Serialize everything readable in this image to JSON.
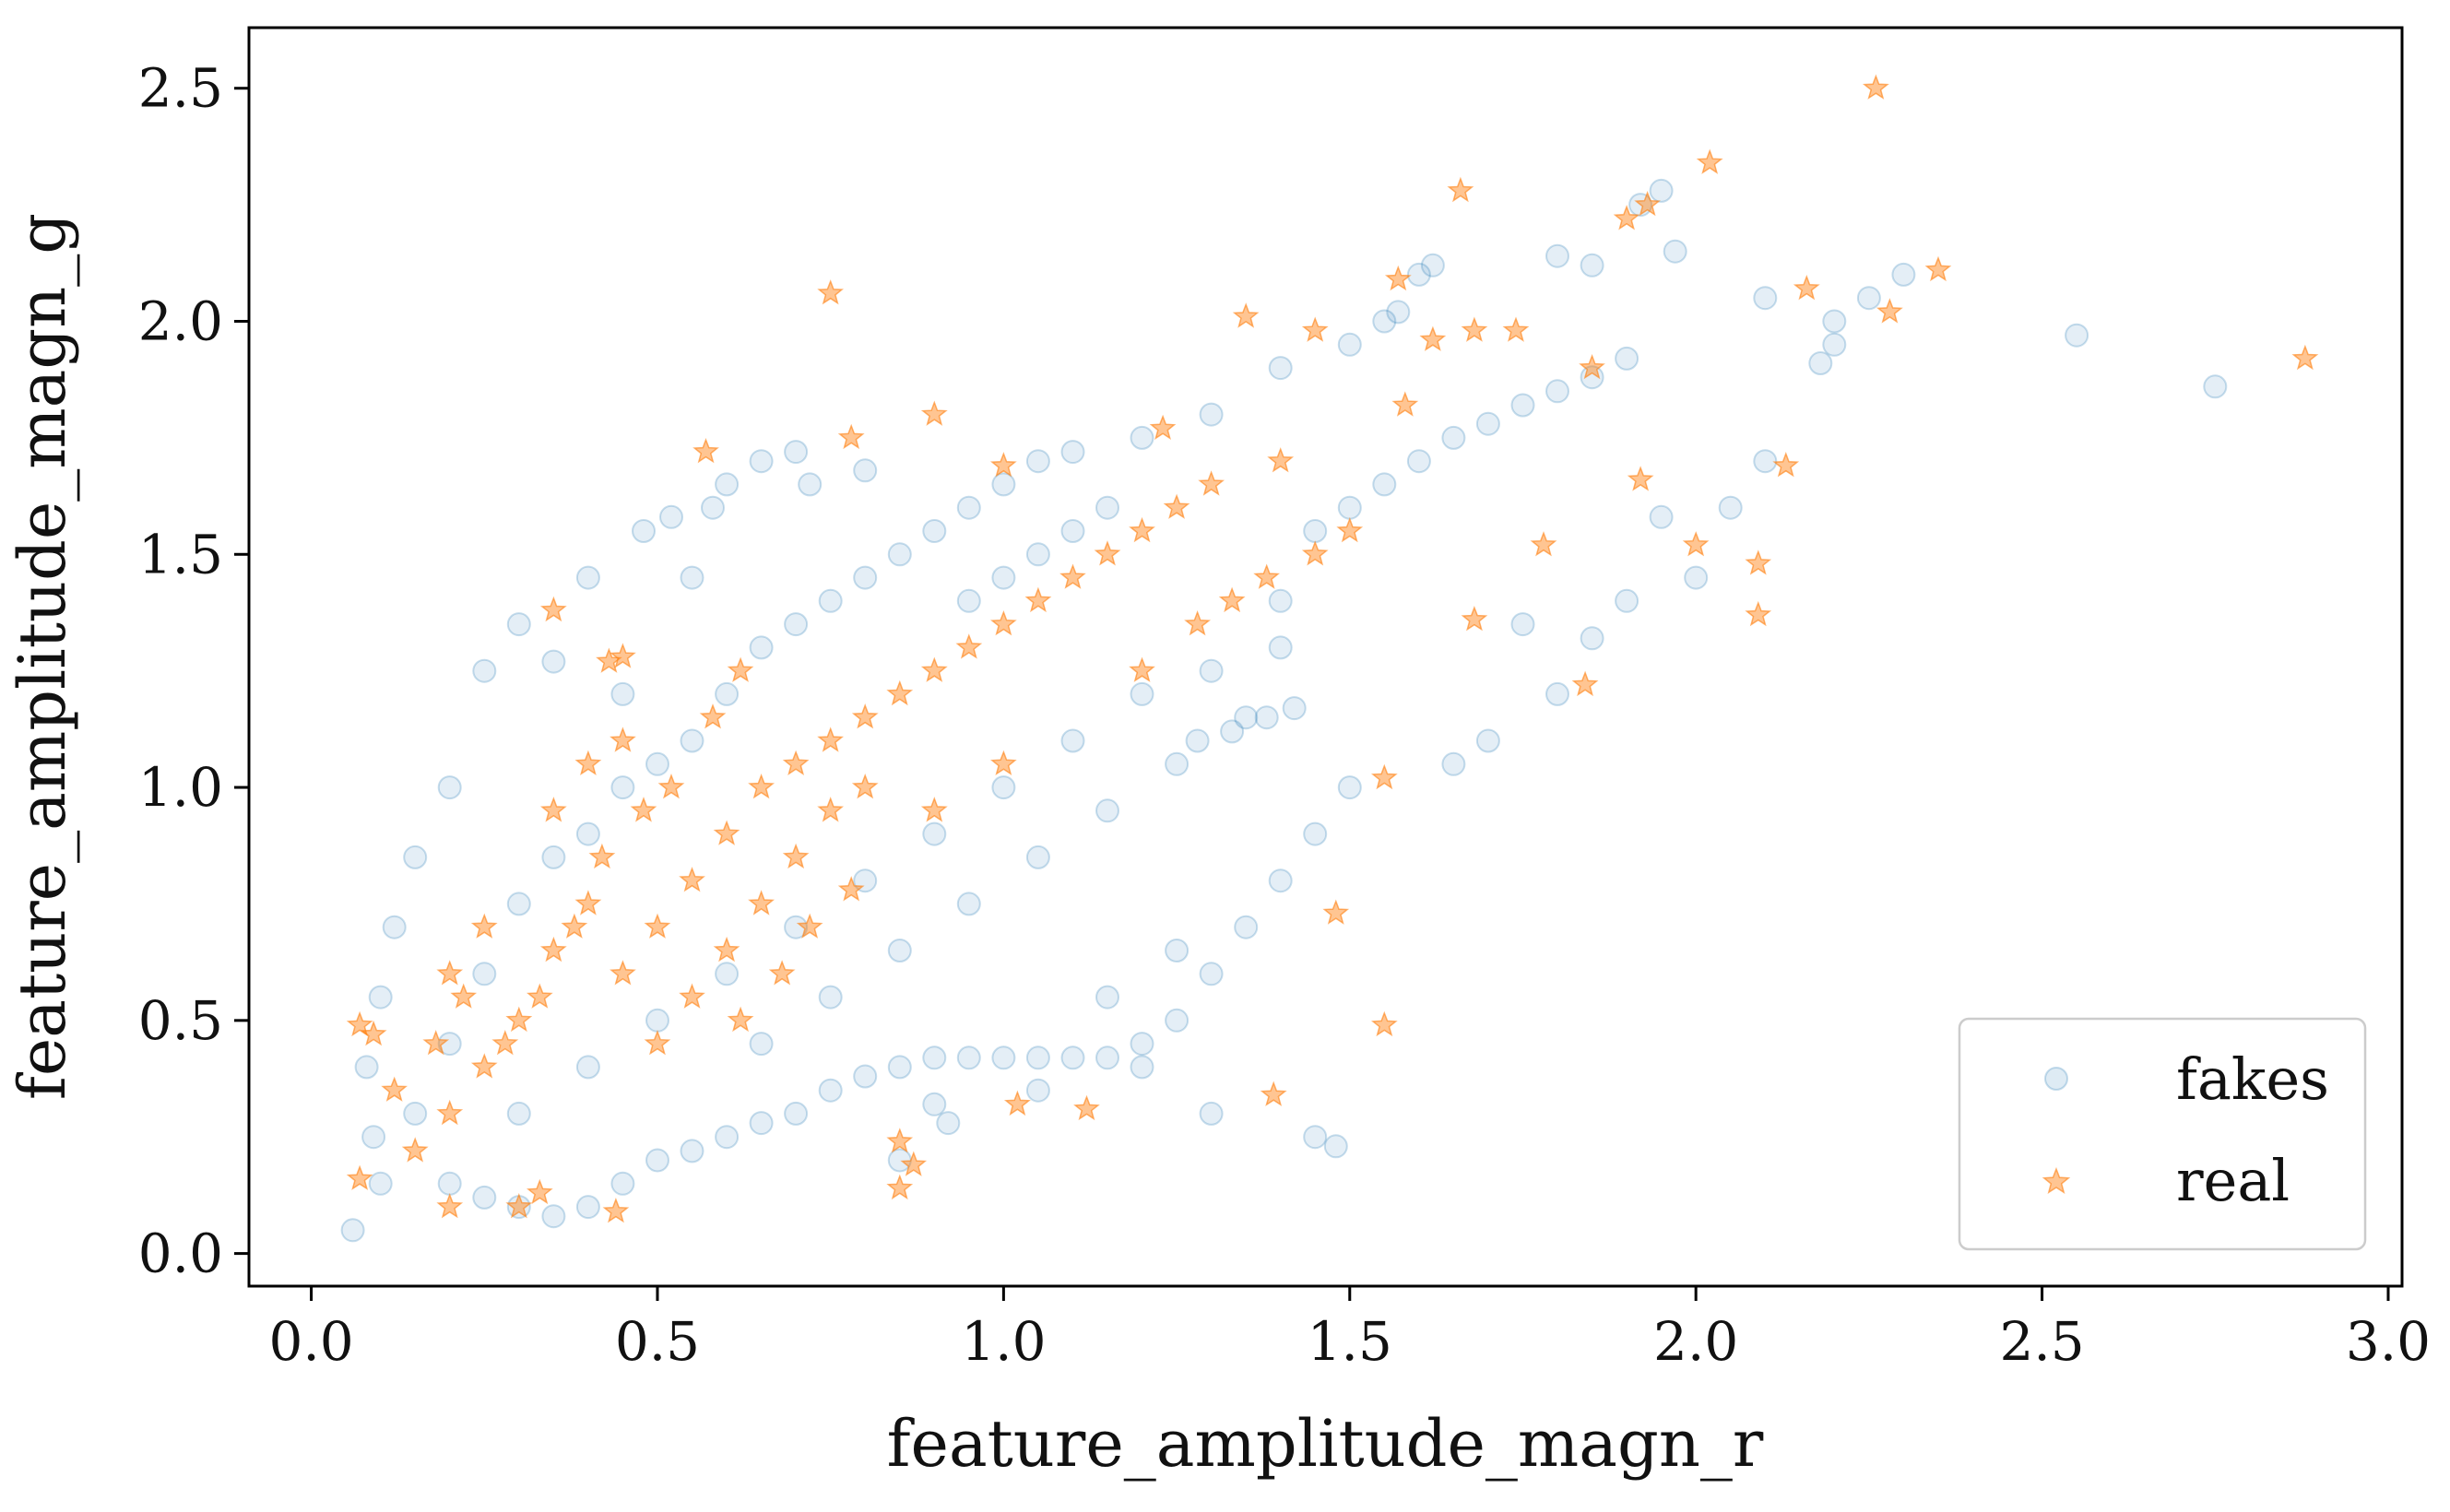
{
  "chart_data": {
    "type": "scatter",
    "title": "",
    "xlabel": "feature_amplitude_magn_r",
    "ylabel": "feature_amplitude_magn_g",
    "xlim": [
      -0.09,
      3.02
    ],
    "ylim": [
      -0.07,
      2.63
    ],
    "xticks": [
      0.0,
      0.5,
      1.0,
      1.5,
      2.0,
      2.5,
      3.0
    ],
    "xtick_labels": [
      "0.0",
      "0.5",
      "1.0",
      "1.5",
      "2.0",
      "2.5",
      "3.0"
    ],
    "yticks": [
      0.0,
      0.5,
      1.0,
      1.5,
      2.0,
      2.5
    ],
    "ytick_labels": [
      "0.0",
      "0.5",
      "1.0",
      "1.5",
      "2.0",
      "2.5"
    ],
    "grid": false,
    "legend_position": "lower-right",
    "series": [
      {
        "name": "fakes",
        "marker": "circle",
        "color": "#1f77b4",
        "alpha": 0.12,
        "points": [
          [
            0.06,
            0.05
          ],
          [
            0.1,
            0.15
          ],
          [
            0.15,
            0.3
          ],
          [
            0.2,
            0.45
          ],
          [
            0.25,
            0.6
          ],
          [
            0.3,
            0.75
          ],
          [
            0.35,
            0.85
          ],
          [
            0.4,
            0.9
          ],
          [
            0.45,
            1.0
          ],
          [
            0.5,
            1.05
          ],
          [
            0.55,
            1.1
          ],
          [
            0.6,
            1.2
          ],
          [
            0.65,
            1.3
          ],
          [
            0.7,
            1.35
          ],
          [
            0.75,
            1.4
          ],
          [
            0.8,
            1.45
          ],
          [
            0.85,
            1.5
          ],
          [
            0.9,
            1.55
          ],
          [
            0.95,
            1.6
          ],
          [
            1.0,
            1.65
          ],
          [
            1.05,
            1.7
          ],
          [
            1.1,
            1.72
          ],
          [
            1.2,
            1.75
          ],
          [
            1.3,
            1.8
          ],
          [
            1.4,
            1.9
          ],
          [
            1.5,
            1.95
          ],
          [
            1.55,
            2.0
          ],
          [
            1.57,
            2.02
          ],
          [
            1.6,
            2.1
          ],
          [
            1.62,
            2.12
          ],
          [
            1.8,
            2.14
          ],
          [
            1.85,
            2.12
          ],
          [
            1.92,
            2.25
          ],
          [
            1.95,
            2.28
          ],
          [
            1.97,
            2.15
          ],
          [
            2.1,
            2.05
          ],
          [
            2.2,
            2.0
          ],
          [
            2.25,
            2.05
          ],
          [
            2.3,
            2.1
          ],
          [
            2.55,
            1.97
          ],
          [
            2.75,
            1.86
          ],
          [
            2.2,
            1.95
          ],
          [
            2.18,
            1.91
          ],
          [
            2.1,
            1.7
          ],
          [
            2.05,
            1.6
          ],
          [
            2.0,
            1.45
          ],
          [
            1.95,
            1.58
          ],
          [
            1.9,
            1.4
          ],
          [
            1.85,
            1.32
          ],
          [
            1.8,
            1.2
          ],
          [
            1.7,
            1.1
          ],
          [
            1.65,
            1.05
          ],
          [
            1.75,
            1.35
          ],
          [
            1.5,
            1.0
          ],
          [
            1.45,
            0.9
          ],
          [
            1.4,
            0.8
          ],
          [
            1.35,
            0.7
          ],
          [
            1.3,
            0.6
          ],
          [
            1.25,
            0.5
          ],
          [
            1.2,
            0.45
          ],
          [
            1.15,
            0.42
          ],
          [
            1.1,
            0.42
          ],
          [
            1.05,
            0.42
          ],
          [
            1.0,
            0.42
          ],
          [
            0.95,
            0.42
          ],
          [
            0.9,
            0.42
          ],
          [
            0.85,
            0.4
          ],
          [
            0.8,
            0.38
          ],
          [
            0.75,
            0.35
          ],
          [
            0.7,
            0.3
          ],
          [
            0.65,
            0.28
          ],
          [
            0.6,
            0.25
          ],
          [
            0.55,
            0.22
          ],
          [
            0.5,
            0.2
          ],
          [
            0.45,
            0.15
          ],
          [
            0.4,
            0.1
          ],
          [
            0.35,
            0.08
          ],
          [
            0.3,
            0.1
          ],
          [
            0.25,
            0.12
          ],
          [
            0.2,
            0.15
          ],
          [
            1.45,
            0.25
          ],
          [
            1.48,
            0.23
          ],
          [
            1.3,
            0.3
          ],
          [
            1.2,
            0.4
          ],
          [
            0.9,
            0.32
          ],
          [
            0.85,
            0.2
          ],
          [
            0.92,
            0.28
          ],
          [
            1.05,
            0.35
          ],
          [
            1.15,
            0.55
          ],
          [
            1.25,
            0.65
          ],
          [
            0.55,
            1.45
          ],
          [
            0.58,
            1.6
          ],
          [
            0.6,
            1.65
          ],
          [
            0.65,
            1.7
          ],
          [
            0.7,
            1.72
          ],
          [
            0.72,
            1.65
          ],
          [
            0.8,
            1.68
          ],
          [
            0.52,
            1.58
          ],
          [
            0.48,
            1.55
          ],
          [
            0.4,
            1.45
          ],
          [
            0.3,
            1.35
          ],
          [
            0.25,
            1.25
          ],
          [
            0.35,
            1.27
          ],
          [
            0.45,
            1.2
          ],
          [
            0.2,
            1.0
          ],
          [
            0.15,
            0.85
          ],
          [
            0.12,
            0.7
          ],
          [
            0.1,
            0.55
          ],
          [
            0.08,
            0.4
          ],
          [
            0.09,
            0.25
          ],
          [
            1.0,
            1.0
          ],
          [
            1.1,
            1.1
          ],
          [
            1.2,
            1.2
          ],
          [
            1.3,
            1.25
          ],
          [
            1.4,
            1.3
          ],
          [
            1.35,
            1.15
          ],
          [
            1.25,
            1.05
          ],
          [
            1.15,
            0.95
          ],
          [
            1.05,
            0.85
          ],
          [
            0.95,
            0.75
          ],
          [
            0.85,
            0.65
          ],
          [
            0.75,
            0.55
          ],
          [
            0.65,
            0.45
          ],
          [
            0.6,
            0.6
          ],
          [
            0.7,
            0.7
          ],
          [
            0.8,
            0.8
          ],
          [
            0.9,
            0.9
          ],
          [
            0.5,
            0.5
          ],
          [
            0.4,
            0.4
          ],
          [
            0.3,
            0.3
          ],
          [
            1.45,
            1.55
          ],
          [
            1.5,
            1.6
          ],
          [
            1.55,
            1.65
          ],
          [
            1.6,
            1.7
          ],
          [
            1.65,
            1.75
          ],
          [
            1.7,
            1.78
          ],
          [
            1.75,
            1.82
          ],
          [
            1.8,
            1.85
          ],
          [
            1.85,
            1.88
          ],
          [
            1.9,
            1.92
          ],
          [
            1.4,
            1.4
          ],
          [
            1.42,
            1.17
          ],
          [
            1.38,
            1.15
          ],
          [
            1.33,
            1.12
          ],
          [
            1.28,
            1.1
          ],
          [
            0.95,
            1.4
          ],
          [
            1.0,
            1.45
          ],
          [
            1.05,
            1.5
          ],
          [
            1.1,
            1.55
          ],
          [
            1.15,
            1.6
          ]
        ]
      },
      {
        "name": "real",
        "marker": "star",
        "color": "#ff7f0e",
        "alpha": 0.45,
        "points": [
          [
            2.26,
            2.5
          ],
          [
            2.02,
            2.34
          ],
          [
            1.66,
            2.28
          ],
          [
            1.9,
            2.22
          ],
          [
            1.93,
            2.25
          ],
          [
            2.35,
            2.11
          ],
          [
            2.28,
            2.02
          ],
          [
            2.16,
            2.07
          ],
          [
            1.57,
            2.09
          ],
          [
            2.88,
            1.92
          ],
          [
            0.75,
            2.06
          ],
          [
            1.35,
            2.01
          ],
          [
            1.45,
            1.98
          ],
          [
            1.62,
            1.96
          ],
          [
            1.74,
            1.98
          ],
          [
            1.68,
            1.98
          ],
          [
            1.85,
            1.9
          ],
          [
            1.58,
            1.82
          ],
          [
            2.13,
            1.69
          ],
          [
            1.92,
            1.66
          ],
          [
            2.0,
            1.52
          ],
          [
            2.09,
            1.48
          ],
          [
            2.09,
            1.37
          ],
          [
            1.78,
            1.52
          ],
          [
            1.84,
            1.22
          ],
          [
            1.68,
            1.36
          ],
          [
            0.57,
            1.72
          ],
          [
            0.78,
            1.75
          ],
          [
            0.9,
            1.8
          ],
          [
            1.23,
            1.77
          ],
          [
            1.0,
            1.69
          ],
          [
            0.35,
            1.38
          ],
          [
            0.43,
            1.27
          ],
          [
            0.45,
            1.28
          ],
          [
            1.55,
            1.02
          ],
          [
            1.48,
            0.73
          ],
          [
            1.55,
            0.49
          ],
          [
            1.39,
            0.34
          ],
          [
            1.12,
            0.31
          ],
          [
            1.02,
            0.32
          ],
          [
            0.85,
            0.14
          ],
          [
            0.87,
            0.19
          ],
          [
            0.85,
            0.24
          ],
          [
            0.07,
            0.16
          ],
          [
            0.07,
            0.49
          ],
          [
            0.09,
            0.47
          ],
          [
            0.44,
            0.09
          ],
          [
            0.3,
            0.1
          ],
          [
            0.33,
            0.13
          ],
          [
            0.2,
            0.1
          ],
          [
            0.45,
            0.6
          ],
          [
            0.5,
            0.7
          ],
          [
            0.55,
            0.8
          ],
          [
            0.6,
            0.9
          ],
          [
            0.65,
            1.0
          ],
          [
            0.7,
            1.05
          ],
          [
            0.75,
            1.1
          ],
          [
            0.8,
            1.15
          ],
          [
            0.85,
            1.2
          ],
          [
            0.9,
            1.25
          ],
          [
            0.95,
            1.3
          ],
          [
            1.0,
            1.35
          ],
          [
            1.05,
            1.4
          ],
          [
            1.1,
            1.45
          ],
          [
            1.15,
            1.5
          ],
          [
            1.2,
            1.55
          ],
          [
            1.25,
            1.6
          ],
          [
            0.3,
            0.5
          ],
          [
            0.35,
            0.65
          ],
          [
            0.4,
            0.75
          ],
          [
            0.25,
            0.4
          ],
          [
            0.2,
            0.3
          ],
          [
            0.15,
            0.22
          ],
          [
            0.5,
            0.45
          ],
          [
            0.55,
            0.55
          ],
          [
            0.6,
            0.65
          ],
          [
            0.65,
            0.75
          ],
          [
            0.7,
            0.85
          ],
          [
            0.75,
            0.95
          ],
          [
            0.8,
            1.0
          ],
          [
            0.42,
            0.85
          ],
          [
            0.48,
            0.95
          ],
          [
            0.52,
            1.0
          ],
          [
            0.38,
            0.7
          ],
          [
            0.33,
            0.55
          ],
          [
            0.28,
            0.45
          ],
          [
            0.62,
            0.5
          ],
          [
            0.68,
            0.6
          ],
          [
            0.72,
            0.7
          ],
          [
            0.78,
            0.78
          ],
          [
            1.2,
            1.25
          ],
          [
            1.28,
            1.35
          ],
          [
            1.33,
            1.4
          ],
          [
            1.38,
            1.45
          ],
          [
            1.45,
            1.5
          ],
          [
            1.5,
            1.55
          ],
          [
            1.3,
            1.65
          ],
          [
            1.4,
            1.7
          ],
          [
            0.9,
            0.95
          ],
          [
            1.0,
            1.05
          ],
          [
            0.2,
            0.6
          ],
          [
            0.18,
            0.45
          ],
          [
            0.25,
            0.7
          ],
          [
            0.22,
            0.55
          ],
          [
            0.12,
            0.35
          ],
          [
            0.35,
            0.95
          ],
          [
            0.4,
            1.05
          ],
          [
            0.45,
            1.1
          ],
          [
            0.58,
            1.15
          ],
          [
            0.62,
            1.25
          ]
        ]
      }
    ]
  }
}
